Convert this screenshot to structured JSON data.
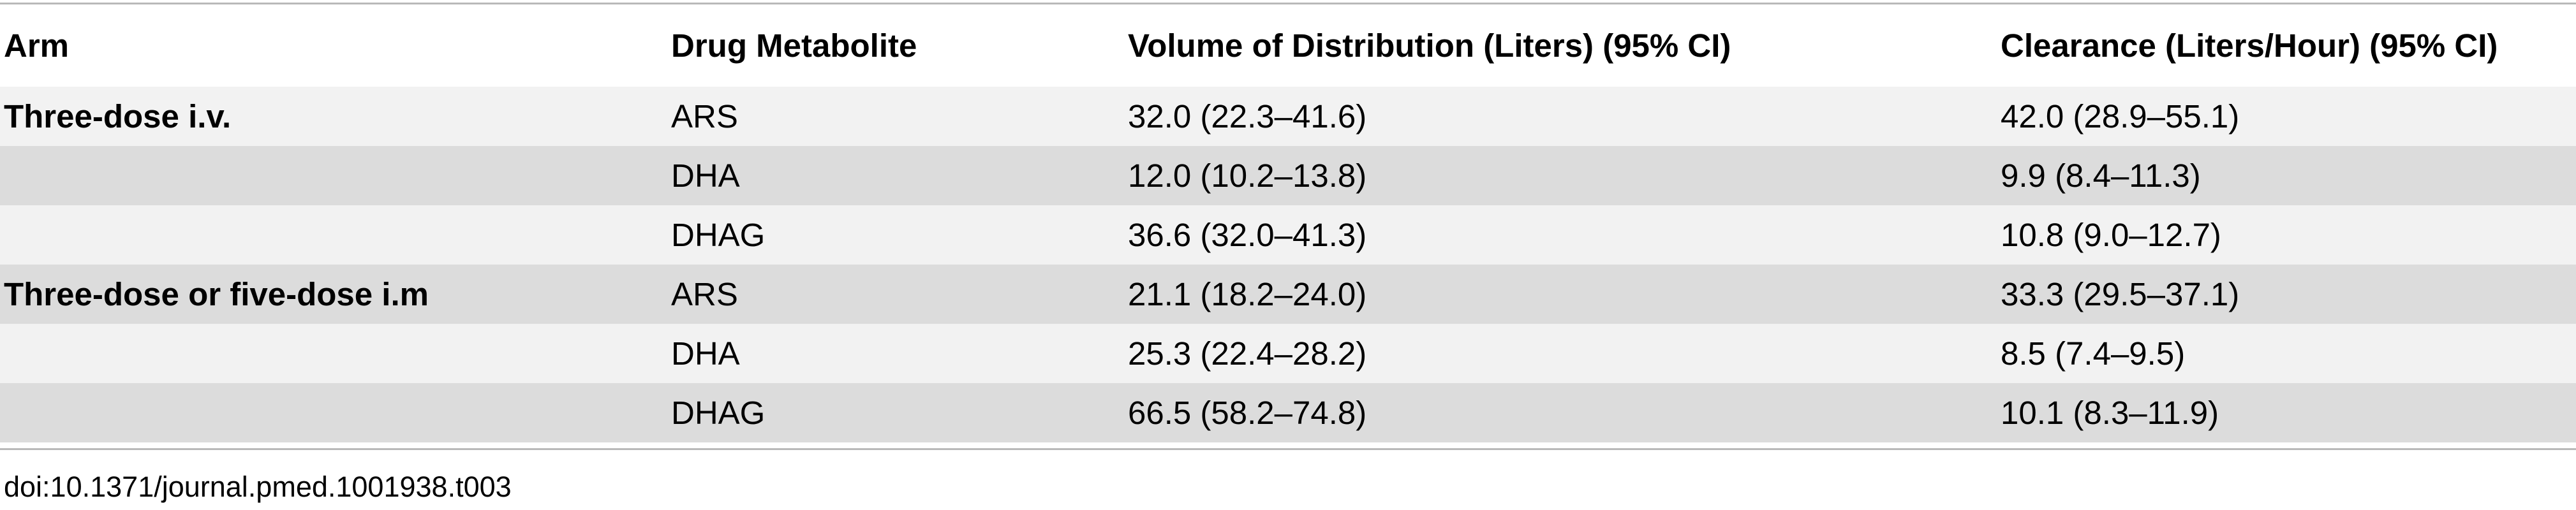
{
  "table": {
    "headers": [
      "Arm",
      "Drug Metabolite",
      "Volume of Distribution (Liters) (95% CI)",
      "Clearance (Liters/Hour) (95% CI)"
    ],
    "rows": [
      {
        "arm": "Three-dose i.v.",
        "metabolite": "ARS",
        "volume": "32.0 (22.3–41.6)",
        "clearance": "42.0 (28.9–55.1)"
      },
      {
        "arm": "",
        "metabolite": "DHA",
        "volume": "12.0 (10.2–13.8)",
        "clearance": "9.9 (8.4–11.3)"
      },
      {
        "arm": "",
        "metabolite": "DHAG",
        "volume": "36.6 (32.0–41.3)",
        "clearance": "10.8 (9.0–12.7)"
      },
      {
        "arm": "Three-dose or five-dose i.m",
        "metabolite": "ARS",
        "volume": "21.1 (18.2–24.0)",
        "clearance": "33.3 (29.5–37.1)"
      },
      {
        "arm": "",
        "metabolite": "DHA",
        "volume": "25.3 (22.4–28.2)",
        "clearance": "8.5 (7.4–9.5)"
      },
      {
        "arm": "",
        "metabolite": "DHAG",
        "volume": "66.5 (58.2–74.8)",
        "clearance": "10.1 (8.3–11.9)"
      }
    ]
  },
  "footer": {
    "doi": "doi:10.1371/journal.pmed.1001938.t003"
  },
  "colors": {
    "row_shade": "#dcdcdc",
    "row_light": "#f2f2f2",
    "rule": "#b9b9b9"
  }
}
